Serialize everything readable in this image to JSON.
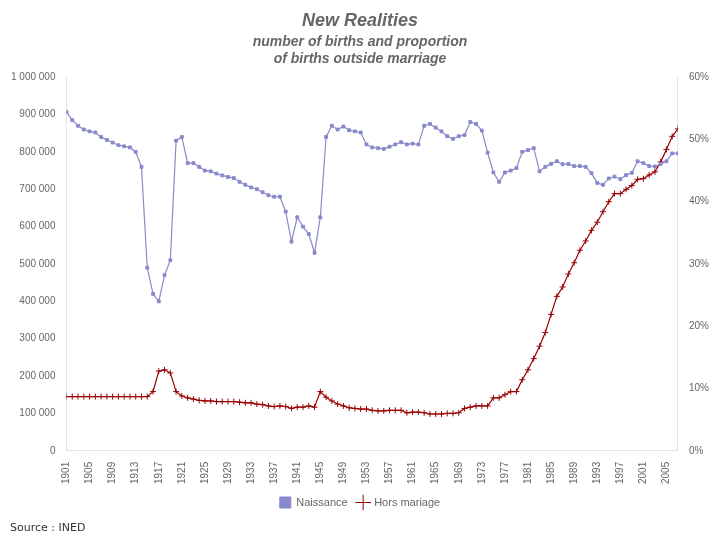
{
  "chart_data": {
    "type": "line",
    "title": "New Realities",
    "subtitle": [
      "number of births and proportion",
      "of births outside marriage"
    ],
    "annotations": [
      "Source : INED"
    ],
    "x": [
      1901,
      1902,
      1903,
      1904,
      1905,
      1906,
      1907,
      1908,
      1909,
      1910,
      1911,
      1912,
      1913,
      1914,
      1915,
      1916,
      1917,
      1918,
      1919,
      1920,
      1921,
      1922,
      1923,
      1924,
      1925,
      1926,
      1927,
      1928,
      1929,
      1930,
      1931,
      1932,
      1933,
      1934,
      1935,
      1936,
      1937,
      1938,
      1939,
      1940,
      1941,
      1942,
      1943,
      1944,
      1945,
      1946,
      1947,
      1948,
      1949,
      1950,
      1951,
      1952,
      1953,
      1954,
      1955,
      1956,
      1957,
      1958,
      1959,
      1960,
      1961,
      1962,
      1963,
      1964,
      1965,
      1966,
      1967,
      1968,
      1969,
      1970,
      1971,
      1972,
      1973,
      1974,
      1975,
      1976,
      1977,
      1978,
      1979,
      1980,
      1981,
      1982,
      1983,
      1984,
      1985,
      1986,
      1987,
      1988,
      1989,
      1990,
      1991,
      1992,
      1993,
      1994,
      1995,
      1996,
      1997,
      1998,
      1999,
      2000,
      2001,
      2002,
      2003,
      2004,
      2005,
      2006,
      2007
    ],
    "series": [
      {
        "name": "Naissance",
        "color": "#8888cc",
        "marker": "square",
        "axis": "y",
        "values": [
          907000,
          885000,
          870000,
          860000,
          855000,
          852000,
          840000,
          832000,
          825000,
          818000,
          815000,
          812000,
          800000,
          760000,
          490000,
          420000,
          400000,
          470000,
          510000,
          830000,
          840000,
          770000,
          770000,
          760000,
          750000,
          748000,
          742000,
          737000,
          733000,
          730000,
          720000,
          712000,
          705000,
          700000,
          692000,
          684000,
          680000,
          680000,
          640000,
          560000,
          625000,
          600000,
          580000,
          530000,
          625000,
          840000,
          870000,
          860000,
          868000,
          858000,
          855000,
          852000,
          820000,
          812000,
          810000,
          808000,
          814000,
          820000,
          826000,
          820000,
          822000,
          820000,
          870000,
          875000,
          865000,
          855000,
          842000,
          835000,
          842000,
          845000,
          880000,
          875000,
          857000,
          798000,
          745000,
          720000,
          745000,
          750000,
          757000,
          800000,
          805000,
          810000,
          748000,
          760000,
          768000,
          775000,
          767000,
          768000,
          762000,
          762000,
          760000,
          743000,
          717000,
          712000,
          729000,
          734000,
          727000,
          738000,
          744000,
          775000,
          770000,
          762000,
          761000,
          768000,
          775000,
          796000,
          796000
        ]
      },
      {
        "name": "Hors mariage",
        "color": "#990000",
        "marker": "plus",
        "axis": "y2",
        "values": [
          8.7,
          8.7,
          8.7,
          8.7,
          8.7,
          8.7,
          8.7,
          8.7,
          8.7,
          8.7,
          8.7,
          8.7,
          8.7,
          8.7,
          8.7,
          9.5,
          12.8,
          13.0,
          12.5,
          9.5,
          8.8,
          8.5,
          8.3,
          8.1,
          8.0,
          8.0,
          7.9,
          7.9,
          7.9,
          7.9,
          7.8,
          7.7,
          7.7,
          7.5,
          7.4,
          7.2,
          7.1,
          7.2,
          7.1,
          6.8,
          7.0,
          7.0,
          7.2,
          7.0,
          9.5,
          8.6,
          8.0,
          7.5,
          7.2,
          6.9,
          6.8,
          6.7,
          6.7,
          6.5,
          6.4,
          6.4,
          6.5,
          6.5,
          6.5,
          6.1,
          6.2,
          6.2,
          6.1,
          5.9,
          5.9,
          5.9,
          6.0,
          6.0,
          6.1,
          6.8,
          7.0,
          7.2,
          7.2,
          7.2,
          8.5,
          8.5,
          9.0,
          9.5,
          9.5,
          11.4,
          13.0,
          14.8,
          16.8,
          19.0,
          21.9,
          24.8,
          26.3,
          28.4,
          30.2,
          32.2,
          33.7,
          35.4,
          36.7,
          38.4,
          40.0,
          41.3,
          41.3,
          42.0,
          42.6,
          43.6,
          43.7,
          44.3,
          44.8,
          46.4,
          48.4,
          50.5,
          51.7
        ]
      }
    ],
    "xlim": [
      1901,
      2007
    ],
    "xticks": [
      1901,
      1905,
      1909,
      1913,
      1917,
      1921,
      1925,
      1929,
      1933,
      1937,
      1941,
      1945,
      1949,
      1953,
      1957,
      1961,
      1965,
      1969,
      1973,
      1977,
      1981,
      1985,
      1989,
      1993,
      1997,
      2001,
      2005
    ],
    "ylim": [
      0,
      1000000
    ],
    "yticks": [
      0,
      {
        "value": 100000,
        "label": "100 000"
      },
      {
        "value": 200000,
        "label": "200 000"
      },
      {
        "value": 300000,
        "label": "300 000"
      },
      {
        "value": 400000,
        "label": "400 000"
      },
      {
        "value": 500000,
        "label": "500 000"
      },
      {
        "value": 600000,
        "label": "600 000"
      },
      {
        "value": 700000,
        "label": "700 000"
      },
      {
        "value": 800000,
        "label": "800 000"
      },
      {
        "value": 900000,
        "label": "900 000"
      },
      {
        "value": 1000000,
        "label": "1 000 000"
      }
    ],
    "y2lim": [
      0,
      60
    ],
    "y2ticks": [
      {
        "value": 0,
        "label": "0%"
      },
      {
        "value": 10,
        "label": "10%"
      },
      {
        "value": 20,
        "label": "20%"
      },
      {
        "value": 30,
        "label": "30%"
      },
      {
        "value": 40,
        "label": "40%"
      },
      {
        "value": 50,
        "label": "50%"
      },
      {
        "value": 60,
        "label": "60%"
      }
    ],
    "grid": false,
    "legend": "bottom"
  }
}
